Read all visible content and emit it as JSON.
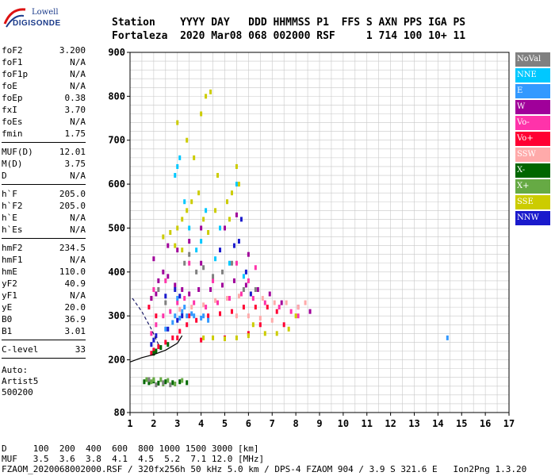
{
  "logo": {
    "line1": "Lowell",
    "line2": "DIGISONDE"
  },
  "header": {
    "labels": [
      "Station",
      "YYYY",
      "DAY",
      "DDD",
      "HHMMSS",
      "P1",
      "FFS",
      "S",
      "AXN",
      "PPS",
      "IGA",
      "PS"
    ],
    "values": [
      "Fortaleza",
      "2020",
      "Mar08",
      "068",
      "002000",
      "RSF",
      "",
      "1",
      "714",
      "100",
      "10+",
      "11"
    ]
  },
  "parameters": [
    [
      {
        "name": "foF2",
        "value": "3.200"
      },
      {
        "name": "foF1",
        "value": "N/A"
      },
      {
        "name": "foF1p",
        "value": "N/A"
      },
      {
        "name": "foE",
        "value": "N/A"
      },
      {
        "name": "foEp",
        "value": "0.38"
      },
      {
        "name": "fxI",
        "value": "3.70"
      },
      {
        "name": "foEs",
        "value": "N/A"
      },
      {
        "name": "fmin",
        "value": "1.75"
      }
    ],
    [
      {
        "name": "MUF(D)",
        "value": "12.01"
      },
      {
        "name": "M(D)",
        "value": "3.75"
      },
      {
        "name": "D",
        "value": "N/A"
      }
    ],
    [
      {
        "name": "h`F",
        "value": "205.0"
      },
      {
        "name": "h`F2",
        "value": "205.0"
      },
      {
        "name": "h`E",
        "value": "N/A"
      },
      {
        "name": "h`Es",
        "value": "N/A"
      }
    ],
    [
      {
        "name": "hmF2",
        "value": "234.5"
      },
      {
        "name": "hmF1",
        "value": "N/A"
      },
      {
        "name": "hmE",
        "value": "110.0"
      },
      {
        "name": "yF2",
        "value": "40.9"
      },
      {
        "name": "yF1",
        "value": "N/A"
      },
      {
        "name": "yE",
        "value": "20.0"
      },
      {
        "name": "B0",
        "value": "36.9"
      },
      {
        "name": "B1",
        "value": "3.01"
      }
    ],
    [
      {
        "name": "C-level",
        "value": "33"
      }
    ]
  ],
  "auto": [
    "Auto:",
    "Artist5",
    "500200"
  ],
  "legend": [
    {
      "label": "NoVal",
      "color": "#808080"
    },
    {
      "label": "NNE",
      "color": "#00c8ff"
    },
    {
      "label": "E",
      "color": "#3399ff"
    },
    {
      "label": "W",
      "color": "#a0009a"
    },
    {
      "label": "Vo-",
      "color": "#ff33aa"
    },
    {
      "label": "Vo+",
      "color": "#ff0033"
    },
    {
      "label": "SSW",
      "color": "#ffaaaa"
    },
    {
      "label": "X-",
      "color": "#006600"
    },
    {
      "label": "X+",
      "color": "#66aa44"
    },
    {
      "label": "SSE",
      "color": "#cccc00"
    },
    {
      "label": "NNW",
      "color": "#1a1acc"
    }
  ],
  "footer": {
    "d_line": "D     100  200  400  600  800 1000 1500 3000 [km]",
    "muf_line": "MUF   3.5  3.6  3.8  4.1  4.5  5.2  7.1 12.0 [MHz]",
    "info_line": "FZAOM_2020068002000.RSF / 320fx256h 50 kHz 5.0 km / DPS-4 FZAOM 904 / 3.9 S 321.6 E   Ion2Png 1.3.20"
  },
  "chart_data": {
    "type": "scatter",
    "xlim": [
      1,
      17
    ],
    "ylim": [
      80,
      900
    ],
    "x_ticks": [
      1,
      2,
      3,
      4,
      5,
      6,
      7,
      8,
      9,
      10,
      11,
      12,
      13,
      14,
      15,
      16,
      17
    ],
    "y_ticks": [
      80,
      200,
      300,
      400,
      500,
      600,
      700,
      800,
      900
    ],
    "grid": true,
    "legend_position": "right",
    "series": [
      {
        "name": "Vo+",
        "color": "#ff0033",
        "points": [
          [
            1.9,
            215
          ],
          [
            2.0,
            222
          ],
          [
            2.2,
            230
          ],
          [
            2.5,
            240
          ],
          [
            2.8,
            250
          ],
          [
            3.1,
            265
          ],
          [
            3.4,
            280
          ],
          [
            3.8,
            290
          ],
          [
            4.3,
            300
          ],
          [
            4.8,
            305
          ],
          [
            5.3,
            310
          ],
          [
            5.8,
            320
          ],
          [
            6.3,
            320
          ],
          [
            6.8,
            320
          ],
          [
            7.2,
            310
          ],
          [
            1.8,
            320
          ],
          [
            2.1,
            300
          ],
          [
            1.9,
            340
          ],
          [
            3.0,
            250
          ],
          [
            4.0,
            245
          ],
          [
            5.0,
            250
          ],
          [
            6.0,
            260
          ],
          [
            6.5,
            280
          ],
          [
            7.5,
            280
          ],
          [
            3.5,
            300
          ]
        ]
      },
      {
        "name": "Vo-",
        "color": "#ff33aa",
        "points": [
          [
            1.9,
            260
          ],
          [
            2.1,
            280
          ],
          [
            2.4,
            300
          ],
          [
            2.7,
            310
          ],
          [
            3.0,
            330
          ],
          [
            3.3,
            340
          ],
          [
            3.7,
            330
          ],
          [
            4.2,
            320
          ],
          [
            4.7,
            330
          ],
          [
            5.2,
            340
          ],
          [
            5.7,
            350
          ],
          [
            6.2,
            340
          ],
          [
            6.7,
            330
          ],
          [
            7.3,
            320
          ],
          [
            7.8,
            310
          ],
          [
            8.1,
            300
          ],
          [
            2.0,
            360
          ],
          [
            2.5,
            380
          ],
          [
            3.5,
            420
          ],
          [
            4.5,
            380
          ],
          [
            5.5,
            420
          ],
          [
            6.0,
            380
          ],
          [
            6.3,
            410
          ]
        ]
      },
      {
        "name": "E",
        "color": "#3399ff",
        "points": [
          [
            2.5,
            270
          ],
          [
            2.8,
            285
          ],
          [
            3.1,
            295
          ],
          [
            3.4,
            300
          ],
          [
            3.7,
            300
          ],
          [
            4.0,
            295
          ],
          [
            4.3,
            290
          ],
          [
            2.9,
            300
          ],
          [
            3.2,
            310
          ],
          [
            3.6,
            305
          ],
          [
            4.1,
            300
          ],
          [
            3.0,
            340
          ],
          [
            3.3,
            320
          ],
          [
            14.4,
            250
          ]
        ]
      },
      {
        "name": "NNE",
        "color": "#00c8ff",
        "points": [
          [
            3.0,
            640
          ],
          [
            3.1,
            660
          ],
          [
            2.9,
            620
          ],
          [
            3.3,
            560
          ],
          [
            3.5,
            500
          ],
          [
            4.0,
            470
          ],
          [
            3.8,
            450
          ],
          [
            4.6,
            430
          ],
          [
            5.2,
            420
          ],
          [
            5.8,
            390
          ],
          [
            4.2,
            540
          ],
          [
            4.8,
            500
          ],
          [
            5.5,
            600
          ]
        ]
      },
      {
        "name": "W",
        "color": "#a0009a",
        "points": [
          [
            1.9,
            340
          ],
          [
            2.1,
            350
          ],
          [
            2.2,
            380
          ],
          [
            2.4,
            400
          ],
          [
            2.6,
            390
          ],
          [
            2.9,
            370
          ],
          [
            3.2,
            360
          ],
          [
            3.5,
            350
          ],
          [
            3.9,
            360
          ],
          [
            4.4,
            360
          ],
          [
            4.9,
            370
          ],
          [
            5.4,
            380
          ],
          [
            5.9,
            370
          ],
          [
            6.4,
            360
          ],
          [
            6.9,
            350
          ],
          [
            7.4,
            330
          ],
          [
            8.1,
            320
          ],
          [
            8.6,
            310
          ],
          [
            3.0,
            450
          ],
          [
            3.5,
            470
          ],
          [
            4.0,
            500
          ],
          [
            5.0,
            500
          ],
          [
            5.5,
            530
          ],
          [
            6.0,
            440
          ],
          [
            4.0,
            420
          ],
          [
            2.0,
            430
          ],
          [
            2.6,
            460
          ]
        ]
      },
      {
        "name": "SSW",
        "color": "#ffaaaa",
        "points": [
          [
            3.1,
            315
          ],
          [
            3.6,
            320
          ],
          [
            4.1,
            325
          ],
          [
            4.6,
            335
          ],
          [
            5.1,
            340
          ],
          [
            5.6,
            345
          ],
          [
            6.1,
            350
          ],
          [
            6.6,
            340
          ],
          [
            7.1,
            330
          ],
          [
            7.6,
            330
          ],
          [
            8.1,
            320
          ],
          [
            8.4,
            330
          ],
          [
            5.5,
            300
          ],
          [
            6.0,
            300
          ],
          [
            6.5,
            295
          ],
          [
            7.0,
            290
          ]
        ]
      },
      {
        "name": "X-",
        "color": "#006600",
        "points": [
          [
            1.6,
            150
          ],
          [
            1.8,
            148
          ],
          [
            2.0,
            152
          ],
          [
            2.2,
            147
          ],
          [
            2.5,
            150
          ],
          [
            2.8,
            148
          ],
          [
            3.1,
            150
          ],
          [
            3.4,
            148
          ],
          [
            2.0,
            215
          ],
          [
            2.1,
            220
          ],
          [
            2.3,
            228
          ],
          [
            2.6,
            235
          ]
        ]
      },
      {
        "name": "X+",
        "color": "#66aa44",
        "points": [
          [
            1.7,
            155
          ],
          [
            2.0,
            155
          ],
          [
            2.3,
            155
          ],
          [
            2.6,
            153
          ],
          [
            1.9,
            150
          ],
          [
            2.4,
            145
          ],
          [
            2.9,
            145
          ],
          [
            3.2,
            153
          ]
        ]
      },
      {
        "name": "SSE",
        "color": "#cccc00",
        "points": [
          [
            2.4,
            480
          ],
          [
            2.7,
            490
          ],
          [
            3.0,
            500
          ],
          [
            3.2,
            520
          ],
          [
            3.4,
            540
          ],
          [
            3.6,
            560
          ],
          [
            3.9,
            580
          ],
          [
            4.1,
            520
          ],
          [
            4.3,
            490
          ],
          [
            4.6,
            540
          ],
          [
            5.1,
            560
          ],
          [
            5.3,
            580
          ],
          [
            5.6,
            600
          ],
          [
            3.0,
            740
          ],
          [
            3.4,
            700
          ],
          [
            3.7,
            660
          ],
          [
            4.0,
            760
          ],
          [
            4.2,
            800
          ],
          [
            4.4,
            810
          ],
          [
            3.2,
            450
          ],
          [
            2.9,
            460
          ],
          [
            4.7,
            620
          ],
          [
            5.5,
            640
          ],
          [
            5.2,
            520
          ],
          [
            6.2,
            280
          ],
          [
            6.7,
            260
          ],
          [
            7.2,
            260
          ],
          [
            7.7,
            270
          ],
          [
            4.1,
            250
          ],
          [
            4.5,
            250
          ],
          [
            5.0,
            248
          ],
          [
            5.5,
            250
          ],
          [
            6.0,
            255
          ],
          [
            8.0,
            300
          ]
        ]
      },
      {
        "name": "NNW",
        "color": "#1a1acc",
        "points": [
          [
            1.9,
            235
          ],
          [
            2.0,
            245
          ],
          [
            2.1,
            255
          ],
          [
            2.6,
            270
          ],
          [
            3.0,
            290
          ],
          [
            3.2,
            300
          ],
          [
            5.4,
            460
          ],
          [
            5.6,
            470
          ],
          [
            5.7,
            520
          ],
          [
            4.8,
            450
          ],
          [
            5.9,
            400
          ],
          [
            6.1,
            350
          ],
          [
            3.1,
            345
          ],
          [
            2.9,
            360
          ],
          [
            2.5,
            345
          ]
        ]
      },
      {
        "name": "NoVal",
        "color": "#808080",
        "points": [
          [
            3.3,
            420
          ],
          [
            3.5,
            440
          ],
          [
            3.8,
            400
          ],
          [
            4.1,
            410
          ],
          [
            4.5,
            390
          ],
          [
            4.9,
            400
          ],
          [
            5.3,
            420
          ],
          [
            5.8,
            360
          ],
          [
            6.3,
            360
          ],
          [
            2.2,
            360
          ],
          [
            2.5,
            330
          ],
          [
            1.8,
            155
          ],
          [
            2.1,
            143
          ],
          [
            2.4,
            148
          ],
          [
            2.7,
            143
          ]
        ]
      }
    ],
    "profile_curve": {
      "points": [
        [
          1.0,
          195
        ],
        [
          1.5,
          205
        ],
        [
          2.0,
          212
        ],
        [
          2.5,
          222
        ],
        [
          3.0,
          238
        ],
        [
          3.2,
          255
        ]
      ]
    },
    "dashed_curve": {
      "points": [
        [
          1.1,
          340
        ],
        [
          1.5,
          310
        ],
        [
          1.9,
          270
        ],
        [
          2.2,
          235
        ]
      ]
    }
  }
}
